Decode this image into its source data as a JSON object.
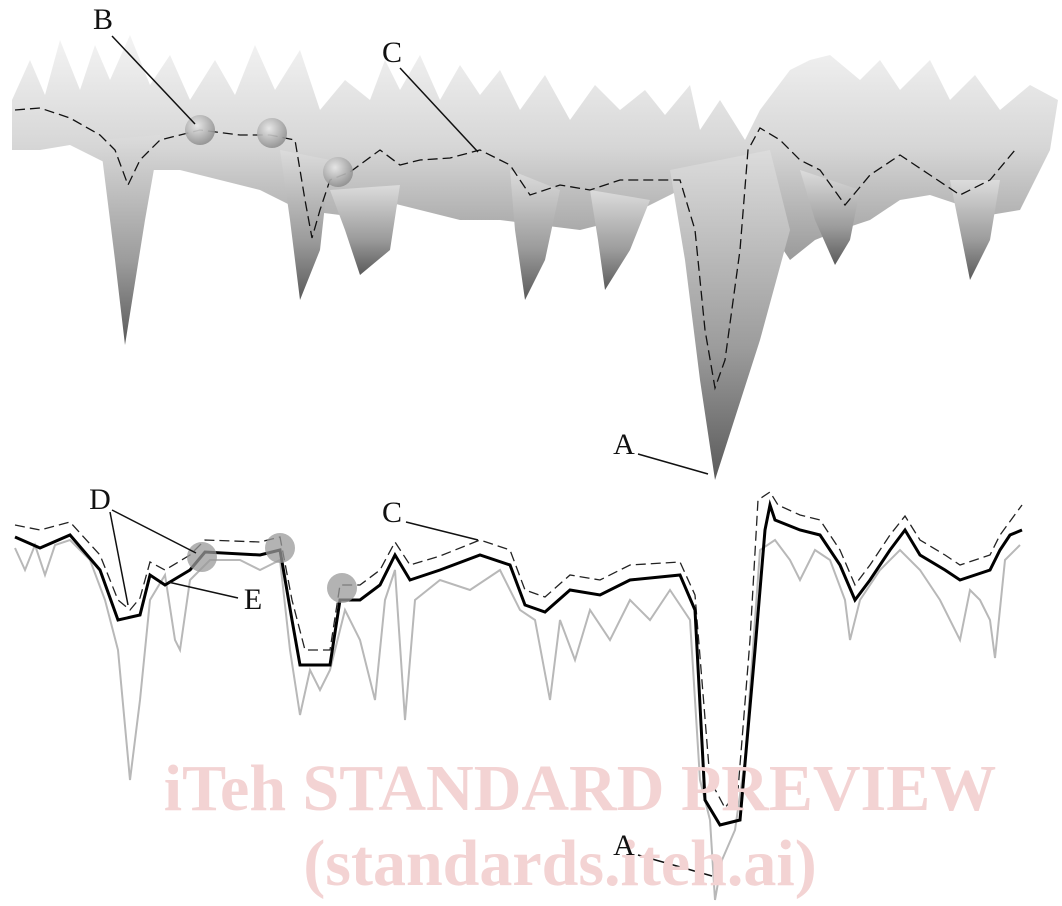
{
  "labels": [
    "B",
    "C",
    "A",
    "D",
    "C",
    "E",
    "A"
  ],
  "watermark": {
    "line1": "iTeh STANDARD PREVIEW",
    "line2": "(standards.iteh.ai)"
  }
}
